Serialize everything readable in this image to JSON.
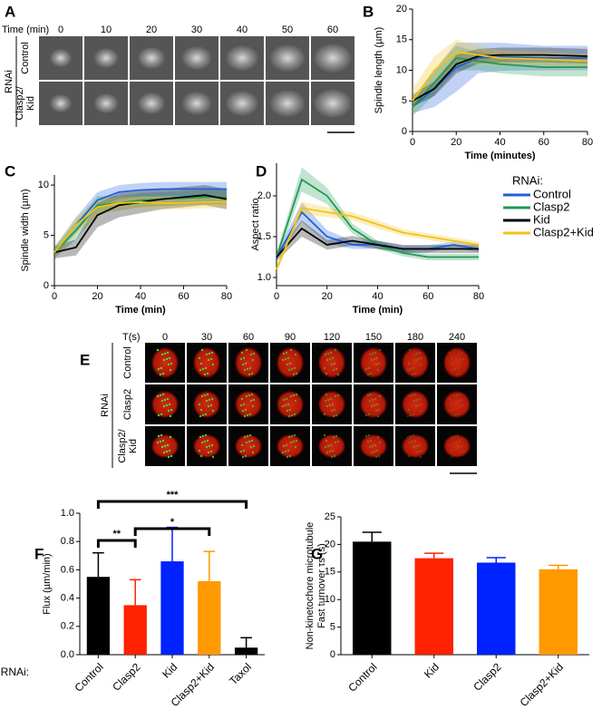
{
  "figures": [
    {
      "panel": "A",
      "time_label": "Time (min)",
      "times": [
        0,
        10,
        20,
        30,
        40,
        50,
        60
      ],
      "group": "RNAi",
      "rows": [
        [
          "Control"
        ],
        [
          "Clasp2/",
          "Kid"
        ]
      ]
    },
    {
      "panel": "E",
      "time_label": "T(s)",
      "times": [
        0,
        30,
        60,
        90,
        120,
        150,
        180,
        240
      ],
      "group": "RNAi",
      "rows": [
        [
          "Control"
        ],
        [
          "Clasp2"
        ],
        [
          "Clasp2/",
          "Kid"
        ]
      ]
    }
  ],
  "chart_data": [
    {
      "type": "line",
      "panel": "B",
      "xlabel": "Time (minutes)",
      "ylabel": "Spindle length (µm)",
      "x": [
        0,
        10,
        20,
        30,
        40,
        60,
        80
      ],
      "xlim": [
        0,
        80
      ],
      "xticks": [
        0,
        20,
        40,
        60,
        80
      ],
      "ylim": [
        0,
        20
      ],
      "yticks": [
        0,
        5,
        10,
        15,
        20
      ],
      "series": [
        {
          "name": "Control",
          "color": "#1f5fd6",
          "values": [
            4,
            7,
            10.5,
            12,
            12.2,
            12,
            12
          ],
          "errors": [
            1,
            3,
            4,
            2.5,
            2.3,
            2,
            2
          ]
        },
        {
          "name": "Clasp2",
          "color": "#1f9a55",
          "values": [
            4,
            8,
            12,
            11.5,
            11,
            10.5,
            10.5
          ],
          "errors": [
            1.5,
            2,
            2,
            1.5,
            1.5,
            1.5,
            1.5
          ]
        },
        {
          "name": "Kid",
          "color": "#000000",
          "values": [
            5,
            7,
            11,
            12.3,
            12.5,
            12.5,
            12.3
          ],
          "errors": [
            1,
            1.2,
            1.5,
            1.2,
            1.2,
            1.2,
            1.2
          ]
        },
        {
          "name": "Clasp2+Kid",
          "color": "#f2c318",
          "values": [
            5,
            10,
            13,
            12.5,
            12,
            11.8,
            11.5
          ],
          "errors": [
            2,
            2.3,
            2,
            1.5,
            1.3,
            1.2,
            1.2
          ]
        }
      ]
    },
    {
      "type": "line",
      "panel": "C",
      "xlabel": "Time (min)",
      "ylabel": "Spindle width (µm)",
      "x": [
        0,
        10,
        20,
        30,
        40,
        50,
        60,
        70,
        80
      ],
      "xlim": [
        0,
        80
      ],
      "xticks": [
        0,
        20,
        40,
        60,
        80
      ],
      "ylim": [
        0,
        11
      ],
      "yticks": [
        0,
        5,
        10
      ],
      "series": [
        {
          "name": "Control",
          "color": "#1f5fd6",
          "values": [
            3.3,
            6,
            8.5,
            9.3,
            9.5,
            9.6,
            9.6,
            9.6,
            9.6
          ],
          "errors": [
            0.5,
            0.8,
            0.8,
            0.7,
            0.7,
            0.7,
            0.7,
            0.7,
            0.7
          ]
        },
        {
          "name": "Clasp2",
          "color": "#1f9a55",
          "values": [
            3.3,
            5.5,
            8,
            8.2,
            8.5,
            8.6,
            8.7,
            8.8,
            8.8
          ],
          "errors": [
            0.6,
            0.9,
            0.9,
            0.7,
            0.7,
            0.7,
            0.7,
            0.7,
            0.7
          ]
        },
        {
          "name": "Kid",
          "color": "#000000",
          "values": [
            3.3,
            3.8,
            7,
            8,
            8.3,
            8.6,
            8.8,
            9,
            8.6
          ],
          "errors": [
            0.6,
            0.8,
            1.2,
            1.2,
            1.1,
            1,
            1,
            1,
            1
          ]
        },
        {
          "name": "Clasp2+Kid",
          "color": "#f2c318",
          "values": [
            3.3,
            6,
            7.8,
            8.2,
            8.3,
            8.2,
            8.2,
            8.3,
            8.3
          ],
          "errors": [
            0.5,
            0.8,
            0.8,
            0.6,
            0.6,
            0.6,
            0.6,
            0.6,
            0.6
          ]
        }
      ]
    },
    {
      "type": "line",
      "panel": "D",
      "xlabel": "Time (min)",
      "ylabel": "Aspect ratio",
      "legend_title": "RNAi:",
      "x": [
        0,
        10,
        20,
        30,
        40,
        50,
        60,
        70,
        80
      ],
      "xlim": [
        0,
        80
      ],
      "xticks": [
        0,
        20,
        40,
        60,
        80
      ],
      "ylim": [
        0.9,
        2.4
      ],
      "yticks": [
        {
          "value": 1,
          "label": "1.0"
        },
        1.5,
        {
          "value": 2,
          "label": "2.0"
        }
      ],
      "series": [
        {
          "name": "Control",
          "color": "#1f5fd6",
          "values": [
            1.25,
            1.8,
            1.5,
            1.4,
            1.4,
            1.35,
            1.35,
            1.4,
            1.35
          ],
          "errors": [
            0.05,
            0.12,
            0.08,
            0.05,
            0.05,
            0.04,
            0.04,
            0.04,
            0.04
          ]
        },
        {
          "name": "Clasp2",
          "color": "#1f9a55",
          "values": [
            1.25,
            2.2,
            2,
            1.6,
            1.4,
            1.3,
            1.25,
            1.25,
            1.25
          ],
          "errors": [
            0.05,
            0.15,
            0.1,
            0.06,
            0.05,
            0.04,
            0.04,
            0.04,
            0.04
          ]
        },
        {
          "name": "Kid",
          "color": "#000000",
          "values": [
            1.25,
            1.6,
            1.4,
            1.45,
            1.4,
            1.35,
            1.35,
            1.35,
            1.35
          ],
          "errors": [
            0.05,
            0.1,
            0.06,
            0.06,
            0.05,
            0.05,
            0.05,
            0.05,
            0.05
          ]
        },
        {
          "name": "Clasp2+Kid",
          "color": "#f2c318",
          "values": [
            1.1,
            1.85,
            1.8,
            1.75,
            1.65,
            1.55,
            1.5,
            1.45,
            1.4
          ],
          "errors": [
            0.05,
            0.08,
            0.06,
            0.05,
            0.05,
            0.04,
            0.04,
            0.04,
            0.04
          ]
        }
      ]
    },
    {
      "type": "bar",
      "panel": "F",
      "ylabel": "Flux (µm/min)",
      "group_label": "RNAi:",
      "categories": [
        "Control",
        "Clasp2",
        "Kid",
        "Clasp2+Kid",
        "Taxol"
      ],
      "values": [
        0.55,
        0.35,
        0.66,
        0.52,
        0.05
      ],
      "errors": [
        0.17,
        0.18,
        0.24,
        0.21,
        0.07
      ],
      "colors": [
        "#000000",
        "#ff2200",
        "#0022ff",
        "#ff9900",
        "#000000"
      ],
      "ylim": [
        0,
        1
      ],
      "yticks": [
        {
          "value": 0,
          "label": "0.0"
        },
        0.2,
        0.4,
        0.6,
        0.8,
        {
          "value": 1,
          "label": "1.0"
        }
      ],
      "annotations": [
        "**",
        "*",
        "***"
      ]
    },
    {
      "type": "bar",
      "panel": "G",
      "ylabel": [
        "Non-kinetochore microtubule",
        "Fast turnover τs (s)"
      ],
      "categories": [
        "Control",
        "Kid",
        "Clasp2",
        "Clasp2+Kid"
      ],
      "values": [
        20.5,
        17.5,
        16.7,
        15.5
      ],
      "errors": [
        1.7,
        0.9,
        0.9,
        0.7
      ],
      "colors": [
        "#000000",
        "#ff2200",
        "#0022ff",
        "#ff9900"
      ],
      "ylim": [
        0,
        25
      ],
      "yticks": [
        0,
        5,
        10,
        15,
        20,
        25
      ]
    }
  ]
}
